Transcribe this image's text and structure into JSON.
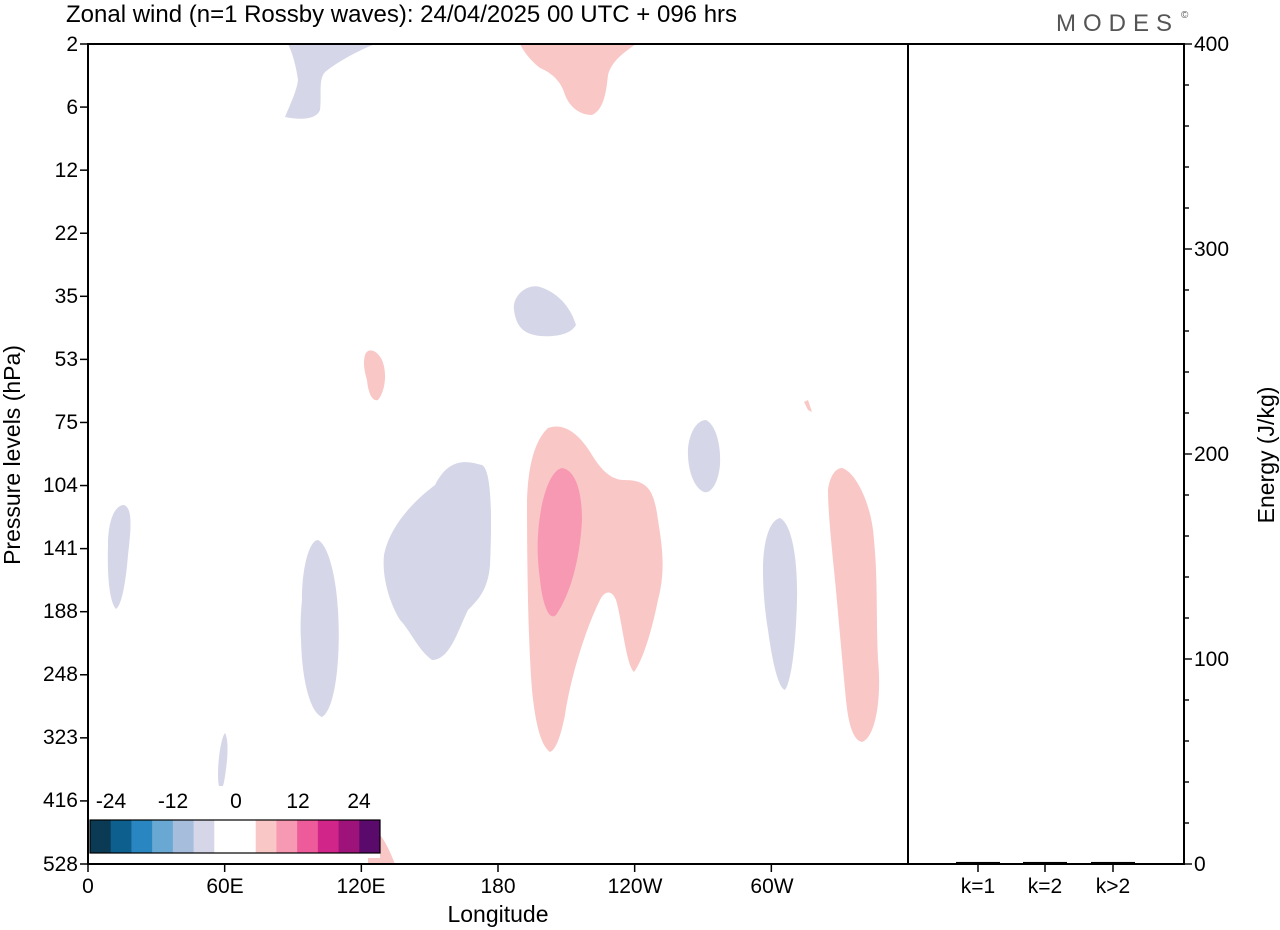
{
  "title": "Zonal wind (n=1 Rossby waves):  24/04/2025  00 UTC  + 096 hrs",
  "brand": "MODES",
  "brand_mark": "©",
  "chart_data": [
    {
      "type": "heatmap",
      "title": "Zonal wind (n=1 Rossby waves):  24/04/2025  00 UTC  + 096 hrs",
      "xlabel": "Longitude",
      "ylabel": "Pressure levels (hPa)",
      "x_tick_labels": [
        "0",
        "60E",
        "120E",
        "180",
        "120W",
        "60W"
      ],
      "x_tick_degrees": [
        0,
        60,
        120,
        180,
        240,
        300
      ],
      "xlim_degrees": [
        0,
        360
      ],
      "y_tick_labels": [
        "2",
        "6",
        "12",
        "22",
        "35",
        "53",
        "75",
        "104",
        "141",
        "188",
        "248",
        "323",
        "416",
        "528"
      ],
      "colorbar": {
        "tick_labels": [
          "-24",
          "-12",
          "0",
          "12",
          "24"
        ],
        "colors": [
          "#0b3a55",
          "#0d5f8e",
          "#2a86c0",
          "#6aa8d4",
          "#a6bedc",
          "#d5d6e8",
          "#ffffff",
          "#ffffff",
          "#f9c8c6",
          "#f799b2",
          "#ee5b9b",
          "#d1258a",
          "#9e137a",
          "#5a0a6b"
        ]
      },
      "contours": [
        {
          "sign": "negative",
          "level_color": "#d5d6e8",
          "lon": 103,
          "pressure_hPa": 4
        },
        {
          "sign": "positive",
          "level_color": "#f9c8c6",
          "lon": 218,
          "pressure_hPa": 4
        },
        {
          "sign": "negative",
          "level_color": "#d5d6e8",
          "lon": 198,
          "pressure_hPa": 38
        },
        {
          "sign": "positive",
          "level_color": "#f9c8c6",
          "lon": 125,
          "pressure_hPa": 60
        },
        {
          "sign": "negative",
          "level_color": "#d5d6e8",
          "lon": 8,
          "pressure_hPa": 148
        },
        {
          "sign": "negative",
          "level_color": "#d5d6e8",
          "lon": 101,
          "pressure_hPa": 200
        },
        {
          "sign": "negative",
          "level_color": "#d5d6e8",
          "lon": 150,
          "pressure_hPa": 150
        },
        {
          "sign": "positive",
          "level_color": "#f9c8c6",
          "lon": 212,
          "pressure_hPa": 180
        },
        {
          "sign": "positive",
          "level_color": "#f799b2",
          "lon": 208,
          "pressure_hPa": 135
        },
        {
          "sign": "negative",
          "level_color": "#d5d6e8",
          "lon": 272,
          "pressure_hPa": 88
        },
        {
          "sign": "negative",
          "level_color": "#d5d6e8",
          "lon": 303,
          "pressure_hPa": 180
        },
        {
          "sign": "positive",
          "level_color": "#f9c8c6",
          "lon": 335,
          "pressure_hPa": 200
        },
        {
          "sign": "negative",
          "level_color": "#d5d6e8",
          "lon": 60,
          "pressure_hPa": 360
        },
        {
          "sign": "positive",
          "level_color": "#f9c8c6",
          "lon": 130,
          "pressure_hPa": 500
        }
      ]
    },
    {
      "type": "bar",
      "ylabel": "Energy (J/kg)",
      "categories": [
        "k=1",
        "k=2",
        "k>2"
      ],
      "values": [
        1,
        1,
        1
      ],
      "ylim": [
        0,
        400
      ],
      "y_tick_labels": [
        "0",
        "100",
        "200",
        "300",
        "400"
      ]
    }
  ]
}
